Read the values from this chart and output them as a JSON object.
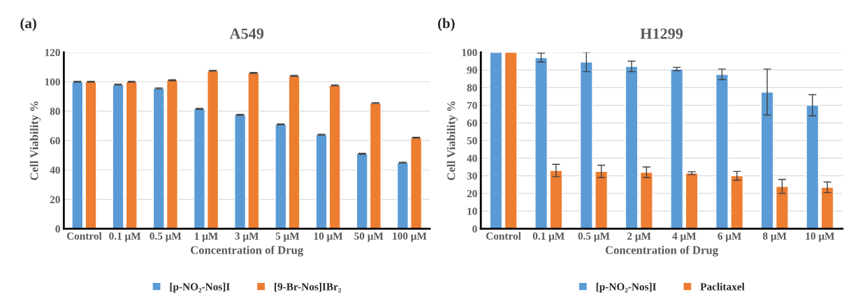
{
  "chart_data": [
    {
      "type": "bar",
      "title": "A549",
      "xlabel": "Concentration of Drug",
      "ylabel": "Cell Viability %",
      "annotations": [
        "(a)"
      ],
      "categories": [
        "Control",
        "0.1 μM",
        "0.5 μM",
        "1 μM",
        "3 μM",
        "5 μM",
        "10 μM",
        "50 μM",
        "100 μM"
      ],
      "series": [
        {
          "name": "[p-NO₂-Nos]I",
          "color": "#5b9bd5",
          "values": [
            100,
            98,
            95.5,
            81.5,
            77.5,
            71,
            64,
            51,
            45
          ],
          "errors": [
            0.3,
            0.3,
            0.3,
            0.3,
            0.3,
            0.3,
            0.3,
            0.3,
            0.3
          ]
        },
        {
          "name": "[9-Br-Nos]IBr₂",
          "color": "#ed7d31",
          "values": [
            100,
            100,
            101,
            107.5,
            106,
            104,
            97.5,
            85.5,
            62
          ],
          "errors": [
            0.3,
            0.3,
            0.3,
            0.3,
            0.3,
            0.3,
            0.3,
            0.3,
            0.3
          ]
        }
      ],
      "ylim": [
        0,
        120
      ],
      "yticks": [
        0,
        20,
        40,
        60,
        80,
        100,
        120
      ],
      "grid": "y",
      "legend": "bottom"
    },
    {
      "type": "bar",
      "title": "H1299",
      "xlabel": "Concentration of Drug",
      "ylabel": "Cell Viability %",
      "annotations": [
        "(b)"
      ],
      "categories": [
        "Control",
        "0.1 μM",
        "0.5 μM",
        "2 μM",
        "4 μM",
        "6 μM",
        "8 μM",
        "10 μM"
      ],
      "series": [
        {
          "name": "[p-NO₂-Nos]I",
          "color": "#5b9bd5",
          "values": [
            100,
            97,
            94.5,
            92,
            90.5,
            87.5,
            77.5,
            70
          ],
          "errors": [
            null,
            2.5,
            5.5,
            3,
            1,
            3,
            13,
            6
          ]
        },
        {
          "name": "Paclitaxel",
          "color": "#ed7d31",
          "values": [
            100,
            33,
            32.5,
            32,
            31.5,
            30,
            24,
            23.5
          ],
          "errors": [
            null,
            3.5,
            3.5,
            3,
            0.8,
            2.5,
            4,
            3
          ]
        }
      ],
      "ylim": [
        0,
        100
      ],
      "yticks": [
        0,
        10,
        20,
        30,
        40,
        50,
        60,
        70,
        80,
        90,
        100
      ],
      "grid": "y",
      "legend": "bottom"
    }
  ]
}
